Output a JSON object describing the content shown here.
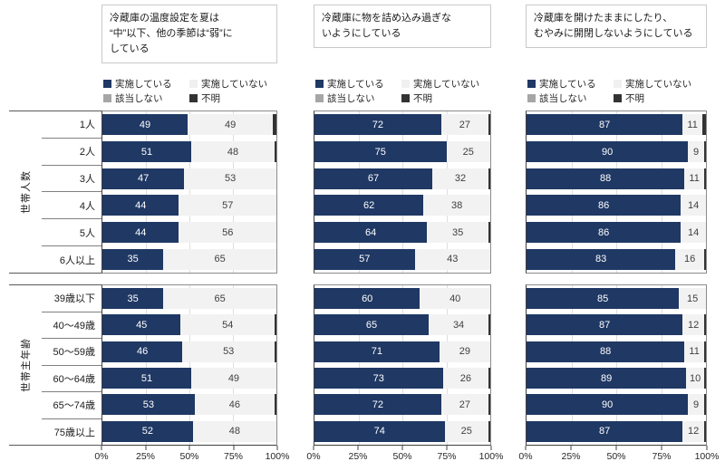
{
  "colors": {
    "implemented": "#1f3864",
    "not_implemented": "#f2f2f2",
    "not_applicable": "#a6a6a6",
    "unknown": "#333333",
    "gridline": "#dedede"
  },
  "legend": {
    "items": [
      {
        "label": "実施している",
        "color": "#1f3864"
      },
      {
        "label": "実施していない",
        "color": "#f0f0f0"
      },
      {
        "label": "該当しない",
        "color": "#a6a6a6"
      },
      {
        "label": "不明",
        "color": "#333333"
      }
    ]
  },
  "groups": [
    {
      "label": "世帯人数",
      "categories": [
        "1人",
        "2人",
        "3人",
        "4人",
        "5人",
        "6人以上"
      ]
    },
    {
      "label": "世帯主年齢",
      "categories": [
        "39歳以下",
        "40～49歳",
        "50～59歳",
        "60～64歳",
        "65～74歳",
        "75歳以上"
      ]
    }
  ],
  "axis": {
    "ticks": [
      "0%",
      "25%",
      "50%",
      "75%",
      "100%"
    ],
    "positions": [
      0,
      25,
      50,
      75,
      100
    ]
  },
  "chart_data": [
    {
      "type": "bar",
      "orientation": "horizontal",
      "stacked": true,
      "title": "冷蔵庫の温度設定を夏は\n“中”以下、他の季節は“弱”に\nしている",
      "legend": [
        "実施している",
        "実施していない",
        "該当しない",
        "不明"
      ],
      "xlim": [
        0,
        100
      ],
      "xticks": [
        "0%",
        "25%",
        "50%",
        "75%",
        "100%"
      ],
      "groups": [
        {
          "label": "世帯人数",
          "categories": [
            "1人",
            "2人",
            "3人",
            "4人",
            "5人",
            "6人以上"
          ],
          "series": [
            {
              "name": "実施している",
              "values": [
                49,
                51,
                47,
                44,
                44,
                35
              ]
            },
            {
              "name": "実施していない",
              "values": [
                49,
                48,
                53,
                57,
                56,
                65
              ]
            }
          ]
        },
        {
          "label": "世帯主年齢",
          "categories": [
            "39歳以下",
            "40～49歳",
            "50～59歳",
            "60～64歳",
            "65～74歳",
            "75歳以上"
          ],
          "series": [
            {
              "name": "実施している",
              "values": [
                35,
                45,
                46,
                51,
                53,
                52
              ]
            },
            {
              "name": "実施していない",
              "values": [
                65,
                54,
                53,
                49,
                46,
                48
              ]
            }
          ]
        }
      ]
    },
    {
      "type": "bar",
      "orientation": "horizontal",
      "stacked": true,
      "title": "冷蔵庫に物を詰め込み過ぎな\nいようにしている",
      "legend": [
        "実施している",
        "実施していない",
        "該当しない",
        "不明"
      ],
      "xlim": [
        0,
        100
      ],
      "xticks": [
        "0%",
        "25%",
        "50%",
        "75%",
        "100%"
      ],
      "groups": [
        {
          "label": "世帯人数",
          "categories": [
            "1人",
            "2人",
            "3人",
            "4人",
            "5人",
            "6人以上"
          ],
          "series": [
            {
              "name": "実施している",
              "values": [
                72,
                75,
                67,
                62,
                64,
                57
              ]
            },
            {
              "name": "実施していない",
              "values": [
                27,
                25,
                32,
                38,
                35,
                43
              ]
            }
          ]
        },
        {
          "label": "世帯主年齢",
          "categories": [
            "39歳以下",
            "40～49歳",
            "50～59歳",
            "60～64歳",
            "65～74歳",
            "75歳以上"
          ],
          "series": [
            {
              "name": "実施している",
              "values": [
                60,
                65,
                71,
                73,
                72,
                74
              ]
            },
            {
              "name": "実施していない",
              "values": [
                40,
                34,
                29,
                26,
                27,
                25
              ]
            }
          ]
        }
      ]
    },
    {
      "type": "bar",
      "orientation": "horizontal",
      "stacked": true,
      "title": "冷蔵庫を開けたままにしたり、\nむやみに開閉しないようにしている",
      "legend": [
        "実施している",
        "実施していない",
        "該当しない",
        "不明"
      ],
      "xlim": [
        0,
        100
      ],
      "xticks": [
        "0%",
        "25%",
        "50%",
        "75%",
        "100%"
      ],
      "groups": [
        {
          "label": "世帯人数",
          "categories": [
            "1人",
            "2人",
            "3人",
            "4人",
            "5人",
            "6人以上"
          ],
          "series": [
            {
              "name": "実施している",
              "values": [
                87,
                90,
                88,
                86,
                86,
                83
              ]
            },
            {
              "name": "実施していない",
              "values": [
                11,
                9,
                11,
                14,
                14,
                16
              ]
            }
          ]
        },
        {
          "label": "世帯主年齢",
          "categories": [
            "39歳以下",
            "40～49歳",
            "50～59歳",
            "60～64歳",
            "65～74歳",
            "75歳以上"
          ],
          "series": [
            {
              "name": "実施している",
              "values": [
                85,
                87,
                88,
                89,
                90,
                87
              ]
            },
            {
              "name": "実施していない",
              "values": [
                15,
                12,
                11,
                10,
                9,
                12
              ]
            }
          ]
        }
      ]
    }
  ]
}
